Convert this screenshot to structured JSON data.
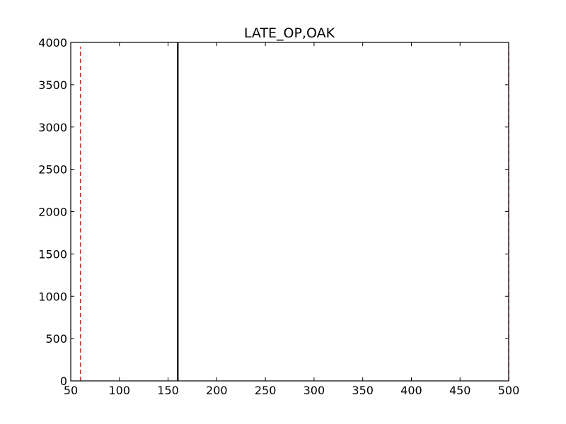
{
  "chart_data": {
    "type": "line",
    "title": "LATE_OP,OAK",
    "xlabel": "",
    "ylabel": "",
    "xlim": [
      50,
      500
    ],
    "ylim": [
      0,
      4000
    ],
    "x_ticks": [
      50,
      100,
      150,
      200,
      250,
      300,
      350,
      400,
      450,
      500
    ],
    "y_ticks": [
      0,
      500,
      1000,
      1500,
      2000,
      2500,
      3000,
      3500,
      4000
    ],
    "x_tick_labels": [
      "50",
      "100",
      "150",
      "200",
      "250",
      "300",
      "350",
      "400",
      "450",
      "500"
    ],
    "y_tick_labels": [
      "0",
      "500",
      "1000",
      "1500",
      "2000",
      "2500",
      "3000",
      "3500",
      "4000"
    ],
    "grid": false,
    "legend": "none",
    "vertical_lines": [
      {
        "x": 60,
        "y_range": [
          0,
          3950
        ],
        "color": "#ff0000",
        "style": "dashed"
      },
      {
        "x": 160,
        "y_range": [
          0,
          4000
        ],
        "color": "#000000",
        "style": "solid"
      },
      {
        "x": 500,
        "y_range": [
          0,
          3950
        ],
        "color": "#ff0000",
        "style": "dashed"
      }
    ]
  }
}
